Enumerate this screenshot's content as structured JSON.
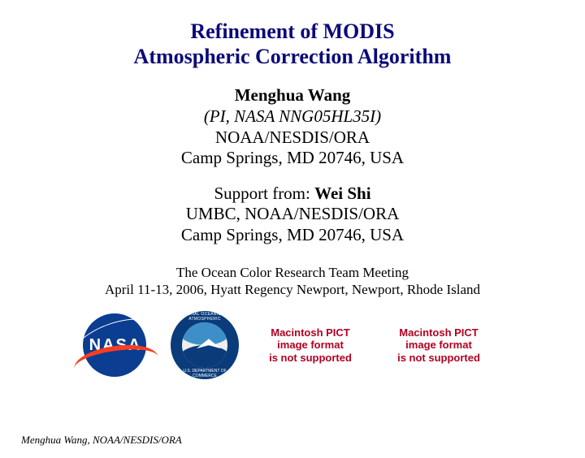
{
  "title_line1": "Refinement of MODIS",
  "title_line2": "Atmospheric Correction Algorithm",
  "author": {
    "name": "Menghua Wang",
    "pi": "(PI, NASA NNG05HL35I)",
    "affil": "NOAA/NESDIS/ORA",
    "location": "Camp Springs, MD 20746, USA"
  },
  "support": {
    "prefix": "Support from: ",
    "name": "Wei Shi",
    "affil": "UMBC, NOAA/NESDIS/ORA",
    "location": "Camp Springs, MD 20746, USA"
  },
  "meeting": {
    "line1": "The Ocean Color Research Team Meeting",
    "line2": "April 11-13, 2006, Hyatt Regency Newport, Newport, Rhode Island"
  },
  "logos": {
    "nasa_text": "NASA",
    "pict_line1": "Macintosh PICT",
    "pict_line2": "image format",
    "pict_line3": "is not supported"
  },
  "footer": "Menghua Wang, NOAA/NESDIS/ORA",
  "colors": {
    "title": "#0a0a7a",
    "nasa_blue": "#0b3d91",
    "nasa_red": "#fc3d21",
    "noaa_dark": "#0a3b7a",
    "noaa_light": "#3d8fc8",
    "pict_red": "#b00020",
    "background": "#ffffff"
  }
}
